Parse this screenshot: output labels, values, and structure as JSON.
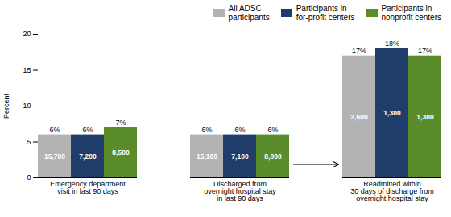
{
  "chart_data": {
    "type": "bar",
    "categories": [
      "Emergency department\nvisit in last 90 days",
      "Discharged from\novernight hospital stay\nin last 90 days",
      "Readmitted within\n30 days of discharge from\novernight hospital stay"
    ],
    "series": [
      {
        "name": "All ADSC\nparticipants",
        "color": "#b3b3b3",
        "values": [
          6,
          6,
          17
        ],
        "value_labels": [
          "6%",
          "6%",
          "17%"
        ],
        "counts": [
          "15,700",
          "15,100",
          "2,600"
        ]
      },
      {
        "name": "Participants in\nfor-profit centers",
        "color": "#1f3d6b",
        "values": [
          6,
          6,
          18
        ],
        "value_labels": [
          "6%",
          "6%",
          "18%"
        ],
        "counts": [
          "7,200",
          "7,100",
          "1,300"
        ]
      },
      {
        "name": "Participants in\nnonprofit centers",
        "color": "#5b8c2a",
        "values": [
          7,
          6,
          17
        ],
        "value_labels": [
          "7%",
          "6%",
          "17%"
        ],
        "counts": [
          "8,500",
          "8,000",
          "1,300"
        ]
      }
    ],
    "ylabel": "Percent",
    "ylim": [
      0,
      20
    ],
    "yticks": [
      0,
      5,
      10,
      15,
      20
    ],
    "grid": false,
    "legend": "top",
    "data_labels": true,
    "arrow": {
      "from": "Discharged from\novernight hospital stay\nin last 90 days",
      "to": "Readmitted within\n30 days of discharge from\novernight hospital stay",
      "y": 1.8
    }
  }
}
